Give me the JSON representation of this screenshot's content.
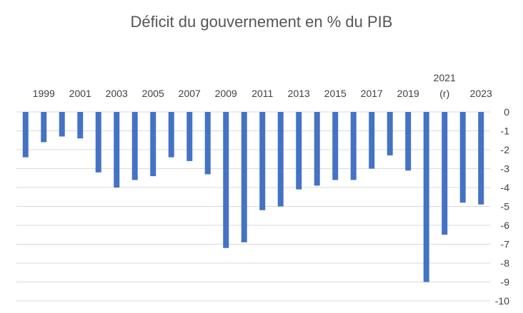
{
  "chart_data": {
    "type": "bar",
    "title": "Déficit du gouvernement  en % du PIB",
    "xlabel": "",
    "ylabel": "",
    "ylim": [
      -10,
      0
    ],
    "yticks": [
      "0",
      "-1",
      "-2",
      "-3",
      "-4",
      "-5",
      "-6",
      "-7",
      "-8",
      "-9",
      "-10"
    ],
    "x_axis_position": "top",
    "y_axis_position": "right",
    "grid": true,
    "bar_color": "#4472c4",
    "categories": [
      "1998",
      "1999",
      "2000",
      "2001",
      "2002",
      "2003",
      "2004",
      "2005",
      "2006",
      "2007",
      "2008",
      "2009",
      "2010",
      "2011",
      "2012",
      "2013",
      "2014",
      "2015",
      "2016",
      "2017",
      "2018",
      "2019",
      "2020",
      "2021 (r)",
      "2022",
      "2023"
    ],
    "tick_labels": [
      {
        "index": 1,
        "lines": [
          "1999"
        ]
      },
      {
        "index": 3,
        "lines": [
          "2001"
        ]
      },
      {
        "index": 5,
        "lines": [
          "2003"
        ]
      },
      {
        "index": 7,
        "lines": [
          "2005"
        ]
      },
      {
        "index": 9,
        "lines": [
          "2007"
        ]
      },
      {
        "index": 11,
        "lines": [
          "2009"
        ]
      },
      {
        "index": 13,
        "lines": [
          "2011"
        ]
      },
      {
        "index": 15,
        "lines": [
          "2013"
        ]
      },
      {
        "index": 17,
        "lines": [
          "2015"
        ]
      },
      {
        "index": 19,
        "lines": [
          "2017"
        ]
      },
      {
        "index": 21,
        "lines": [
          "2019"
        ]
      },
      {
        "index": 23,
        "lines": [
          "2021",
          "(r)"
        ]
      },
      {
        "index": 25,
        "lines": [
          "2023"
        ]
      }
    ],
    "values": [
      -2.4,
      -1.6,
      -1.3,
      -1.4,
      -3.2,
      -4.0,
      -3.6,
      -3.4,
      -2.4,
      -2.6,
      -3.3,
      -7.2,
      -6.9,
      -5.2,
      -5.0,
      -4.1,
      -3.9,
      -3.6,
      -3.6,
      -3.0,
      -2.3,
      -3.1,
      -9.0,
      -6.5,
      -4.8,
      -4.9
    ]
  }
}
